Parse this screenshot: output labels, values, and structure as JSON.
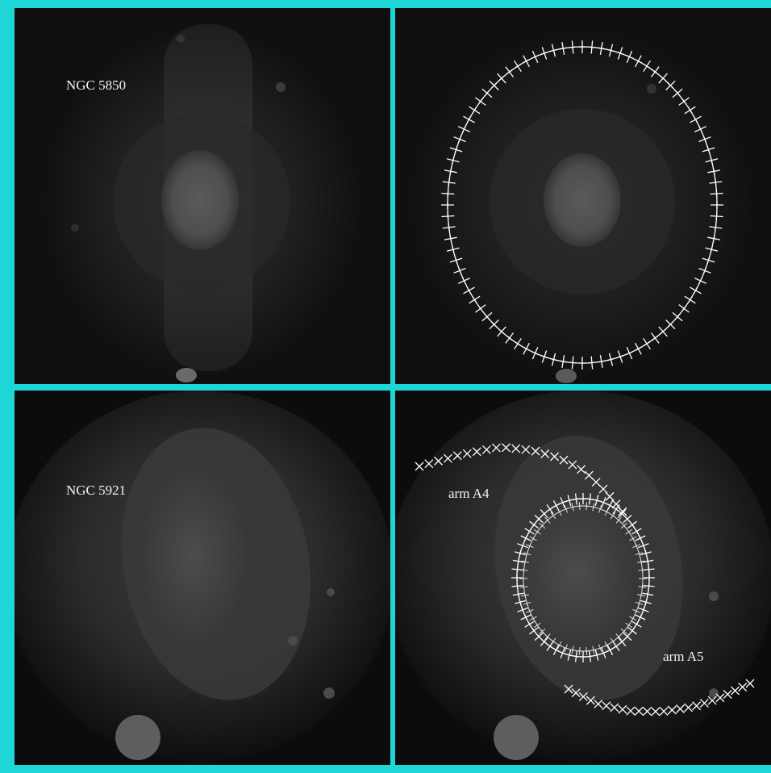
{
  "panels": {
    "top_left": {
      "label": "NGC 5850"
    },
    "bottom_left": {
      "label": "NGC 5921"
    },
    "bottom_right": {
      "arm_a4_label": "arm A4",
      "arm_a5_label": "arm A5"
    }
  },
  "colors": {
    "frame": "#1fd6d6",
    "markers": "#ffffff"
  }
}
